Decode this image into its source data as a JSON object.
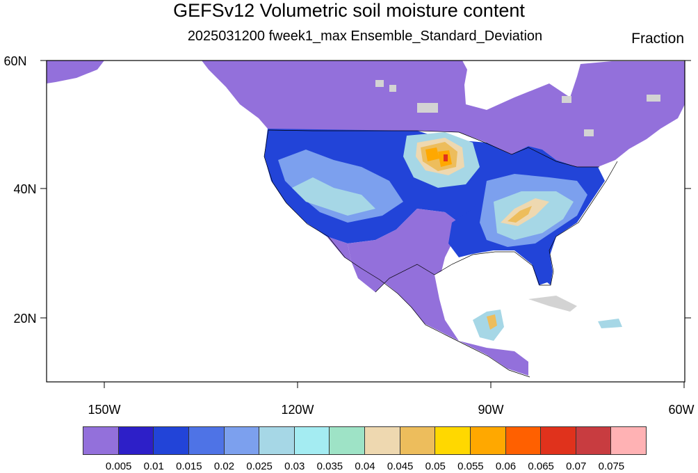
{
  "title": "GEFSv12 Volumetric soil moisture content",
  "subtitle": "2025031200 fweek1_max Ensemble_Standard_Deviation",
  "units": "Fraction",
  "axes": {
    "lat_labels": [
      "20N",
      "40N",
      "60N"
    ],
    "lon_labels": [
      "150W",
      "120W",
      "90W",
      "60W"
    ],
    "lat_range": [
      10,
      60
    ],
    "lon_range": [
      -159,
      -60
    ]
  },
  "colorbar": {
    "labels": [
      "0.005",
      "0.01",
      "0.015",
      "0.02",
      "0.025",
      "0.03",
      "0.035",
      "0.04",
      "0.045",
      "0.05",
      "0.055",
      "0.06",
      "0.065",
      "0.07",
      "0.075"
    ],
    "colors": [
      "#9370db",
      "#2d1fc8",
      "#2244d8",
      "#4e73e6",
      "#7ca0ee",
      "#a6d7e6",
      "#a4ecf2",
      "#9ee3c6",
      "#eed8b0",
      "#edbd5c",
      "#ffd800",
      "#ffa800",
      "#ff6000",
      "#e0321c",
      "#c83c40",
      "#ffb2b4"
    ]
  }
}
